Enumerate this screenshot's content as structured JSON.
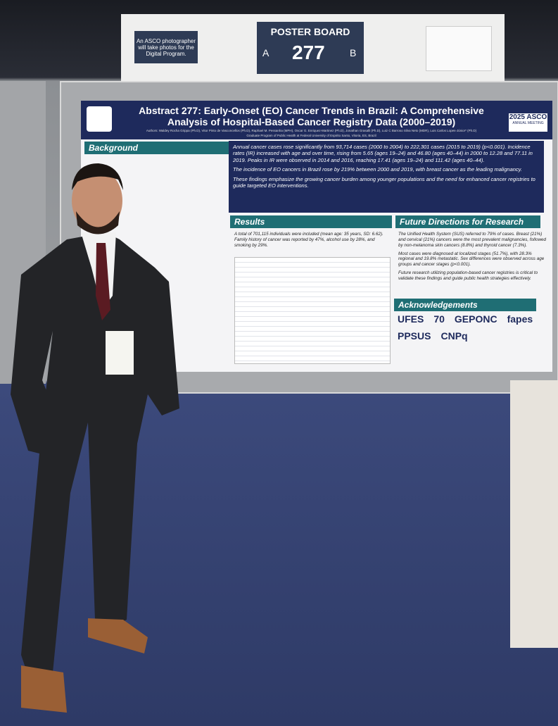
{
  "sign": {
    "note": "An ASCO photographer will take photos for the Digital Program.",
    "label": "POSTER BOARD",
    "side_a": "A",
    "number": "277",
    "side_b": "B"
  },
  "poster": {
    "title": "Abstract 277: Early-Onset (EO) Cancer Trends in Brazil: A Comprehensive Analysis of Hospital-Based Cancer Registry Data (2000–2019)",
    "meeting": "2025 ASCO",
    "meeting_sub": "ANNUAL MEETING",
    "authors": "Authors: Waldey Rocha Grippa (Ph.D), Vitor Pinto de Vasconcellos (Ph.D), Raphael M. Pessanha (MPH), Oscar G. Enriquez-Martinez (Ph.D), Jonathan Grasalli (Ph.D), Luiz C Barroso Silva Neto (MDR), Luis Carlos Lopes-Júnior* (Ph.D)",
    "affiliation": "Graduate Program of Public Health at Federal University of Espirito Santo, Vitoria, ES, Brazil",
    "sections": {
      "background": {
        "heading": "Background"
      },
      "findings": {
        "bullets": [
          "Annual cancer cases rose significantly from 93,714 cases (2000 to 2004) to 222,301 cases (2015 to 2019) (p<0.001). Incidence rates (IR) increased with age and over time, rising from 5.65 (ages 19–24) and 46.80 (ages 40–44) in 2000 to 12.28 and 77.11 in 2019. Peaks in IR were observed in 2014 and 2016, reaching 17.41 (ages 19–24) and 111.42 (ages 40–44).",
          "The incidence of EO cancers in Brazil rose by 219% between 2000 and 2019, with breast cancer as the leading malignancy.",
          "These findings emphasize the growing cancer burden among younger populations and the need for enhanced cancer registries to guide targeted EO interventions."
        ]
      },
      "results": {
        "heading": "Results",
        "bullets": [
          "A total of 701,115 individuals were included (mean age: 35 years, SD: 6.62). Family history of cancer was reported by 47%, alcohol use by 28%, and smoking by 29%."
        ]
      },
      "future": {
        "heading": "Future Directions for Research",
        "bullets": [
          "The Unified Health System (SUS) referred to 79% of cases. Breast (21%) and cervical (21%) cancers were the most prevalent malignancies, followed by non-melanoma skin cancers (8.8%) and thyroid cancer (7.3%).",
          "Most cases were diagnosed at localized stages (51.7%), with 28.3% regional and 19.8% metastatic. Sex differences were observed across age groups and cancer stages (p<0.001).",
          "Future research utilizing population-based cancer registries is critical to validate these findings and guide public health strategies effectively."
        ]
      },
      "acknowledgements": {
        "heading": "Acknowledgements",
        "logos": [
          "UFES",
          "70",
          "GEPONC",
          "fapes",
          "PPSUS",
          "CNPq"
        ]
      }
    }
  }
}
